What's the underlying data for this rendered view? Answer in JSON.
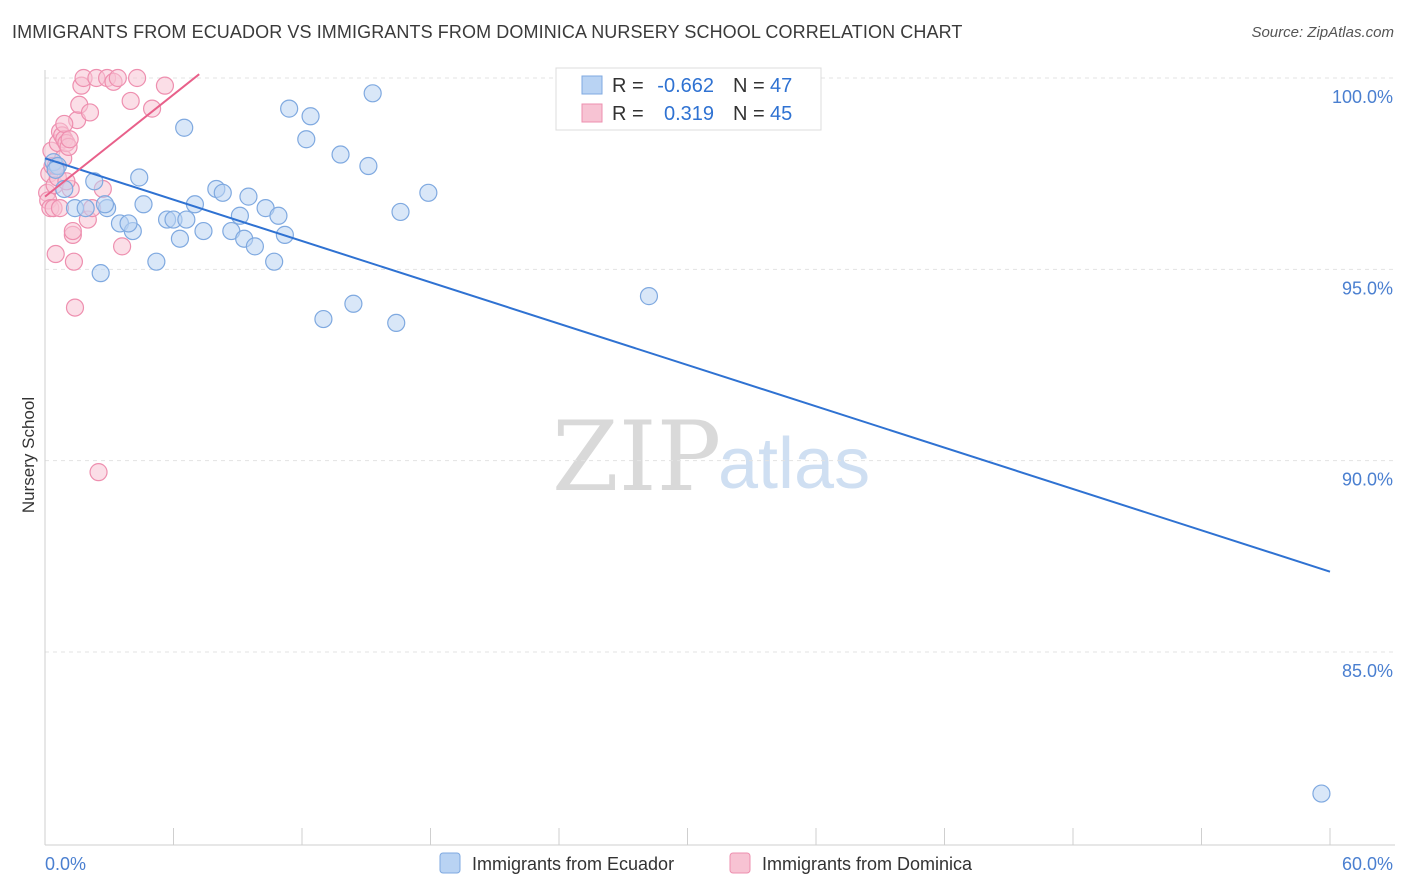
{
  "title": "IMMIGRANTS FROM ECUADOR VS IMMIGRANTS FROM DOMINICA NURSERY SCHOOL CORRELATION CHART",
  "source": "Source: ZipAtlas.com",
  "watermark": {
    "zip": "ZIP",
    "atlas": "atlas"
  },
  "colors": {
    "blue_fill": "#b9d3f3",
    "blue_stroke": "#7fa9e0",
    "blue_line": "#2f72d2",
    "pink_fill": "#f7c3d3",
    "pink_stroke": "#ee8faf",
    "pink_line": "#e8608a",
    "tick_text": "#4a7fd0",
    "grid": "#e3e3e3"
  },
  "chart_data": {
    "type": "scatter",
    "title": "IMMIGRANTS FROM ECUADOR VS IMMIGRANTS FROM DOMINICA NURSERY SCHOOL CORRELATION CHART",
    "xlabel": "",
    "ylabel": "Nursery School",
    "xlim": [
      0,
      60
    ],
    "ylim": [
      80.5,
      100.7
    ],
    "x_tick_labels": {
      "left": "0.0%",
      "right": "60.0%"
    },
    "y_ticks": [
      {
        "value": 100,
        "label": "100.0%"
      },
      {
        "value": 95,
        "label": "95.0%"
      },
      {
        "value": 90,
        "label": "90.0%"
      },
      {
        "value": 85,
        "label": "85.0%"
      }
    ],
    "legend_box": [
      {
        "r_label": "R =",
        "r": "-0.662",
        "n_label": "N =",
        "n": "47"
      },
      {
        "r_label": "R =",
        "r": " 0.319",
        "n_label": "N =",
        "n": "45"
      }
    ],
    "series": [
      {
        "name": "Immigrants from Ecuador",
        "color": "blue",
        "trend": {
          "x0": 0,
          "y0": 97.9,
          "x1": 60,
          "y1": 87.1
        },
        "points": [
          [
            0.4,
            97.8
          ],
          [
            0.6,
            97.7
          ],
          [
            0.9,
            97.1
          ],
          [
            1.4,
            96.6
          ],
          [
            1.9,
            96.6
          ],
          [
            2.3,
            97.3
          ],
          [
            2.6,
            94.9
          ],
          [
            2.9,
            96.6
          ],
          [
            2.8,
            96.7
          ],
          [
            3.5,
            96.2
          ],
          [
            4.1,
            96.0
          ],
          [
            3.9,
            96.2
          ],
          [
            4.4,
            97.4
          ],
          [
            4.6,
            96.7
          ],
          [
            5.2,
            95.2
          ],
          [
            5.7,
            96.3
          ],
          [
            6.0,
            96.3
          ],
          [
            6.3,
            95.8
          ],
          [
            6.6,
            96.3
          ],
          [
            7.0,
            96.7
          ],
          [
            7.4,
            96.0
          ],
          [
            6.5,
            98.7
          ],
          [
            8.0,
            97.1
          ],
          [
            8.3,
            97.0
          ],
          [
            8.7,
            96.0
          ],
          [
            9.1,
            96.4
          ],
          [
            9.3,
            95.8
          ],
          [
            9.5,
            96.9
          ],
          [
            9.8,
            95.6
          ],
          [
            10.3,
            96.6
          ],
          [
            10.7,
            95.2
          ],
          [
            10.9,
            96.4
          ],
          [
            11.2,
            95.9
          ],
          [
            11.4,
            99.2
          ],
          [
            12.2,
            98.4
          ],
          [
            12.4,
            99.0
          ],
          [
            13.0,
            93.7
          ],
          [
            13.8,
            98.0
          ],
          [
            14.4,
            94.1
          ],
          [
            15.3,
            99.6
          ],
          [
            15.1,
            97.7
          ],
          [
            16.4,
            93.6
          ],
          [
            16.6,
            96.5
          ],
          [
            17.9,
            97.0
          ],
          [
            28.2,
            94.3
          ],
          [
            59.6,
            81.3
          ],
          [
            0.5,
            97.6
          ]
        ]
      },
      {
        "name": "Immigrants from Dominica",
        "color": "pink",
        "trend": {
          "x0": 0,
          "y0": 96.9,
          "x1": 7.2,
          "y1": 100.1
        },
        "points": [
          [
            0.1,
            97.0
          ],
          [
            0.15,
            96.8
          ],
          [
            0.2,
            97.5
          ],
          [
            0.25,
            96.6
          ],
          [
            0.3,
            98.1
          ],
          [
            0.35,
            97.7
          ],
          [
            0.4,
            96.6
          ],
          [
            0.45,
            97.2
          ],
          [
            0.5,
            95.4
          ],
          [
            0.6,
            98.3
          ],
          [
            0.7,
            98.6
          ],
          [
            0.8,
            98.5
          ],
          [
            0.9,
            98.4
          ],
          [
            0.85,
            97.9
          ],
          [
            1.0,
            98.3
          ],
          [
            1.1,
            98.2
          ],
          [
            1.2,
            97.1
          ],
          [
            1.3,
            95.9
          ],
          [
            1.35,
            95.2
          ],
          [
            1.4,
            94.0
          ],
          [
            1.5,
            98.9
          ],
          [
            1.6,
            99.3
          ],
          [
            1.7,
            99.8
          ],
          [
            1.8,
            100.0
          ],
          [
            2.0,
            96.3
          ],
          [
            2.1,
            99.1
          ],
          [
            2.2,
            96.6
          ],
          [
            2.4,
            100.0
          ],
          [
            2.5,
            89.7
          ],
          [
            2.7,
            97.1
          ],
          [
            2.9,
            100.0
          ],
          [
            3.2,
            99.9
          ],
          [
            3.4,
            100.0
          ],
          [
            3.6,
            95.6
          ],
          [
            4.0,
            99.4
          ],
          [
            4.3,
            100.0
          ],
          [
            5.0,
            99.2
          ],
          [
            5.6,
            99.8
          ],
          [
            0.6,
            97.4
          ],
          [
            0.7,
            96.6
          ],
          [
            0.9,
            98.8
          ],
          [
            1.0,
            97.3
          ],
          [
            1.15,
            98.4
          ],
          [
            0.5,
            97.7
          ],
          [
            1.3,
            96.0
          ]
        ]
      }
    ]
  }
}
